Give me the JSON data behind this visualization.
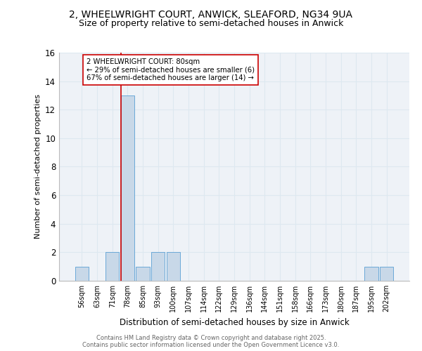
{
  "title_line1": "2, WHEELWRIGHT COURT, ANWICK, SLEAFORD, NG34 9UA",
  "title_line2": "Size of property relative to semi-detached houses in Anwick",
  "xlabel": "Distribution of semi-detached houses by size in Anwick",
  "ylabel": "Number of semi-detached properties",
  "footer_line1": "Contains HM Land Registry data © Crown copyright and database right 2025.",
  "footer_line2": "Contains public sector information licensed under the Open Government Licence v3.0.",
  "annotation_line1": "2 WHEELWRIGHT COURT: 80sqm",
  "annotation_line2": "← 29% of semi-detached houses are smaller (6)",
  "annotation_line3": "67% of semi-detached houses are larger (14) →",
  "bar_labels": [
    "56sqm",
    "63sqm",
    "71sqm",
    "78sqm",
    "85sqm",
    "93sqm",
    "100sqm",
    "107sqm",
    "114sqm",
    "122sqm",
    "129sqm",
    "136sqm",
    "144sqm",
    "151sqm",
    "158sqm",
    "166sqm",
    "173sqm",
    "180sqm",
    "187sqm",
    "195sqm",
    "202sqm"
  ],
  "bar_values": [
    1,
    0,
    2,
    13,
    1,
    2,
    2,
    0,
    0,
    0,
    0,
    0,
    0,
    0,
    0,
    0,
    0,
    0,
    0,
    1,
    1
  ],
  "bar_color": "#c8d8e8",
  "bar_edge_color": "#5a9fd4",
  "red_line_bar_index": 3,
  "ylim": [
    0,
    16
  ],
  "yticks": [
    0,
    2,
    4,
    6,
    8,
    10,
    12,
    14,
    16
  ],
  "grid_color": "#dde8f0",
  "bg_color": "#eef2f7",
  "red_line_color": "#cc0000",
  "annotation_box_edge": "#cc0000",
  "annotation_box_bg": "white",
  "title1_fontsize": 10,
  "title2_fontsize": 9
}
